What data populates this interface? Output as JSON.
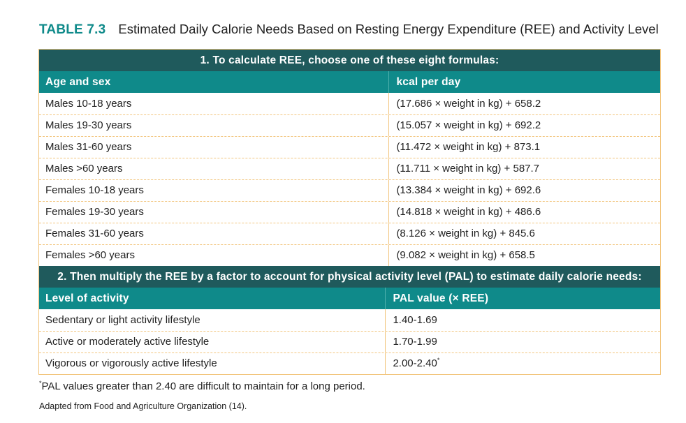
{
  "title": {
    "label": "TABLE 7.3",
    "text": "Estimated Daily Calorie Needs Based on Resting Energy Expenditure (REE) and Activity Level"
  },
  "section1": {
    "banner": "1. To calculate REE, choose one of these eight formulas:",
    "headers": [
      "Age and sex",
      "kcal per day"
    ],
    "rows": [
      [
        "Males 10-18 years",
        "(17.686 × weight in kg) + 658.2"
      ],
      [
        "Males 19-30 years",
        "(15.057 × weight in kg) + 692.2"
      ],
      [
        "Males 31-60 years",
        "(11.472 × weight in kg) + 873.1"
      ],
      [
        "Males >60 years",
        "(11.711 × weight in kg) + 587.7"
      ],
      [
        "Females 10-18 years",
        "(13.384 × weight in kg) + 692.6"
      ],
      [
        "Females 19-30 years",
        "(14.818 × weight in kg) + 486.6"
      ],
      [
        "Females 31-60 years",
        "(8.126 × weight in kg) + 845.6"
      ],
      [
        "Females >60 years",
        "(9.082 × weight in kg) + 658.5"
      ]
    ]
  },
  "section2": {
    "banner": "2. Then multiply the REE by a factor to account for physical activity level (PAL) to estimate daily calorie needs:",
    "headers": [
      "Level of activity",
      "PAL value (× REE)"
    ],
    "rows": [
      [
        "Sedentary or light activity lifestyle",
        "1.40-1.69"
      ],
      [
        "Active or moderately active lifestyle",
        "1.70-1.99"
      ],
      [
        "Vigorous or vigorously active lifestyle",
        "2.00-2.40"
      ]
    ],
    "last_value_marker": "*"
  },
  "footnote": {
    "marker": "*",
    "text": "PAL values greater than 2.40 are difficult to maintain for a long period."
  },
  "source": "Adapted from Food and Agriculture Organization (14).",
  "colors": {
    "accent_teal": "#0f8a8a",
    "banner_dark_teal": "#1f5a5c",
    "rule_orange": "#f2c57d"
  }
}
